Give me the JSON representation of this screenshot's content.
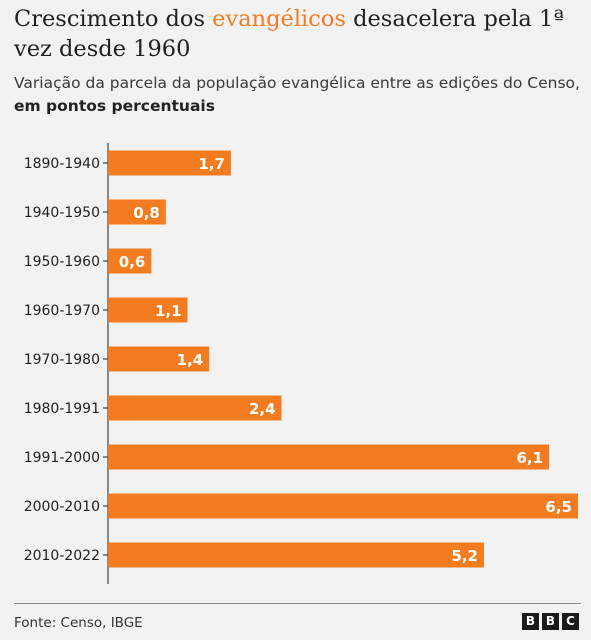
{
  "header": {
    "title_before": "Crescimento dos ",
    "title_highlight": "evangélicos",
    "title_after": " desacelera pela 1ª vez desde 1960",
    "subtitle_prefix": "Variação da parcela da população evangélica entre as edições do Censo, ",
    "subtitle_bold": "em pontos percentuais"
  },
  "footer": {
    "source": "Fonte: Censo, IBGE",
    "logo_letters": [
      "B",
      "B",
      "C"
    ]
  },
  "colors": {
    "bar": "#f47c20",
    "highlight_text": "#f47c20",
    "axis": "#444444",
    "value_label": "#ffffff"
  },
  "chart_data": {
    "type": "bar",
    "orientation": "horizontal",
    "categories": [
      "1890-1940",
      "1940-1950",
      "1950-1960",
      "1960-1970",
      "1970-1980",
      "1980-1991",
      "1991-2000",
      "2000-2010",
      "2010-2022"
    ],
    "values": [
      1.7,
      0.8,
      0.6,
      1.1,
      1.4,
      2.4,
      6.1,
      6.5,
      5.2
    ],
    "value_labels": [
      "1,7",
      "0,8",
      "0,6",
      "1,1",
      "1,4",
      "2,4",
      "6,1",
      "6,5",
      "5,2"
    ],
    "xlim": [
      0,
      6.5
    ],
    "grid": false,
    "legend": false
  }
}
